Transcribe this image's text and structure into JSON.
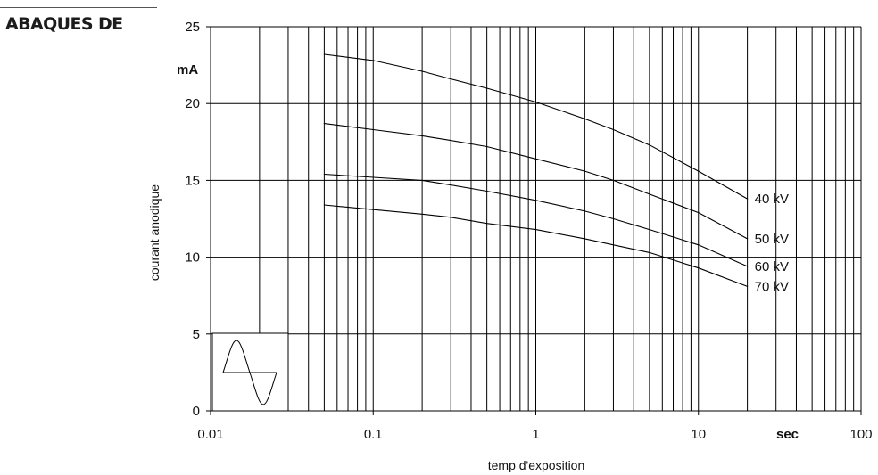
{
  "header": {
    "title": "ABAQUES DE"
  },
  "chart_data": {
    "type": "line",
    "title": "",
    "xlabel": "temp d'exposition",
    "ylabel": "courant anodique",
    "x_unit": "sec",
    "y_unit": "mA",
    "x_scale": "log",
    "xlim": [
      0.01,
      100
    ],
    "ylim": [
      0,
      25
    ],
    "x_ticks": [
      "0.01",
      "0.1",
      "1",
      "10",
      "100"
    ],
    "y_ticks": [
      "0",
      "5",
      "10",
      "15",
      "20",
      "25"
    ],
    "grid": true,
    "series": [
      {
        "name": "40 kV",
        "x": [
          0.05,
          0.1,
          0.2,
          0.3,
          0.5,
          1,
          2,
          3,
          5,
          10,
          20
        ],
        "y": [
          23.2,
          22.8,
          22.1,
          21.6,
          21.0,
          20.1,
          19.0,
          18.3,
          17.3,
          15.6,
          13.8
        ]
      },
      {
        "name": "50 kV",
        "x": [
          0.05,
          0.1,
          0.2,
          0.3,
          0.5,
          1,
          2,
          3,
          5,
          10,
          20
        ],
        "y": [
          18.7,
          18.3,
          17.9,
          17.6,
          17.2,
          16.4,
          15.6,
          15.0,
          14.1,
          12.9,
          11.2
        ]
      },
      {
        "name": "60 kV",
        "x": [
          0.05,
          0.1,
          0.2,
          0.3,
          0.5,
          1,
          2,
          3,
          5,
          10,
          20
        ],
        "y": [
          15.4,
          15.2,
          15.0,
          14.7,
          14.3,
          13.7,
          13.0,
          12.5,
          11.8,
          10.8,
          9.4
        ]
      },
      {
        "name": "70 kV",
        "x": [
          0.05,
          0.1,
          0.2,
          0.3,
          0.5,
          1,
          2,
          3,
          5,
          10,
          20
        ],
        "y": [
          13.4,
          13.1,
          12.8,
          12.6,
          12.2,
          11.8,
          11.2,
          10.8,
          10.3,
          9.3,
          8.1
        ]
      }
    ],
    "inset_icon": "sine-wave-icon"
  }
}
